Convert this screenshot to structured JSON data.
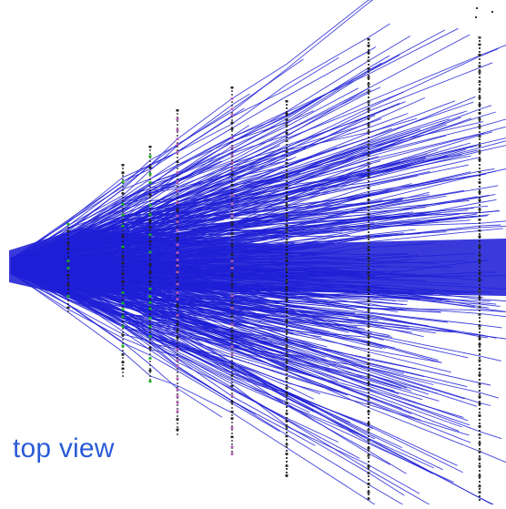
{
  "caption": "top view",
  "colors": {
    "tracks": "#1f1fd6",
    "plane_dots": "#3a3a3a",
    "layer_green": "#19b31b",
    "layer_purple": "#b85cb8",
    "caption": "#2a5bd7"
  }
}
